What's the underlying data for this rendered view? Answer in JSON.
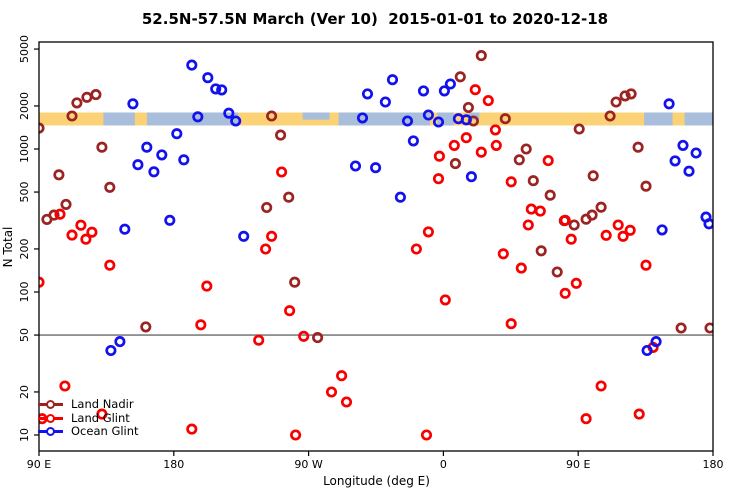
{
  "title": "52.5N-57.5N March (Ver 10)  2015-01-01 to 2020-12-18",
  "legend": {
    "position": "bottom-left"
  },
  "chart_data": {
    "type": "scatter",
    "title": "52.5N-57.5N March (Ver 10)  2015-01-01 to 2020-12-18",
    "xlabel": "Longitude (deg E)",
    "ylabel": "N Total",
    "x_axis": {
      "note": "x = degrees eastward from 90E; axis spans 450 deg (90E>180>90W>0>90E>180)",
      "span_deg": 450,
      "tick_positions_deg": [
        0,
        90,
        180,
        270,
        360,
        450
      ],
      "tick_labels": [
        "90 E",
        "180",
        "90 W",
        "0",
        "90 E",
        "180"
      ]
    },
    "y_axis": {
      "scale": "log10",
      "ticks": [
        10,
        20,
        50,
        100,
        200,
        500,
        1000,
        2000,
        5000
      ],
      "range": [
        8,
        5600
      ]
    },
    "reference_line_y": 50,
    "reference_line_color": "#808080",
    "map_band": {
      "comment": "land/ocean strip for 52.5N-57.5N plotted across the longitude axis",
      "y_value_range": [
        1460,
        1800
      ],
      "land_color": "#FBD376",
      "ocean_color": "#A8BEDA",
      "ocean_segments_deg": [
        [
          43,
          64
        ],
        [
          72,
          133
        ],
        [
          200,
          261
        ],
        [
          266,
          277
        ],
        [
          404,
          423
        ],
        [
          431,
          450
        ]
      ],
      "half_ocean_segments_deg": [
        [
          176,
          194
        ],
        [
          287,
          294
        ]
      ]
    },
    "series": [
      {
        "name": "Land Nadir",
        "color": "#9B2423",
        "points": [
          [
            0,
            1400
          ],
          [
            5.3,
            322
          ],
          [
            10,
            345
          ],
          [
            13.3,
            660
          ],
          [
            18,
            410
          ],
          [
            22,
            1700
          ],
          [
            25.3,
            2100
          ],
          [
            32,
            2300
          ],
          [
            38,
            2400
          ],
          [
            42,
            1030
          ],
          [
            47.3,
            540
          ],
          [
            71.3,
            57
          ],
          [
            152,
            390
          ],
          [
            155.3,
            1700
          ],
          [
            161.3,
            1250
          ],
          [
            166.7,
            460
          ],
          [
            170.7,
            117
          ],
          [
            186,
            48
          ],
          [
            278,
            790
          ],
          [
            281.3,
            3200
          ],
          [
            286.7,
            1950
          ],
          [
            290,
            1570
          ],
          [
            295.3,
            4500
          ],
          [
            311.3,
            1630
          ],
          [
            320.7,
            840
          ],
          [
            325.3,
            1000
          ],
          [
            330,
            600
          ],
          [
            335.3,
            194
          ],
          [
            341.3,
            475
          ],
          [
            346,
            138
          ],
          [
            350.7,
            315
          ],
          [
            357.3,
            294
          ],
          [
            360.7,
            1380
          ],
          [
            365.3,
            323
          ],
          [
            369.3,
            345
          ],
          [
            370,
            650
          ],
          [
            375.3,
            392
          ],
          [
            381.3,
            1700
          ],
          [
            385.3,
            2130
          ],
          [
            391.3,
            2350
          ],
          [
            395.3,
            2430
          ],
          [
            400,
            1030
          ],
          [
            405.3,
            549
          ],
          [
            428.7,
            56
          ],
          [
            448,
            56
          ]
        ]
      },
      {
        "name": "Land Glint",
        "color": "#F80000",
        "points": [
          [
            0,
            117
          ],
          [
            2,
            13
          ],
          [
            14,
            350
          ],
          [
            17.3,
            22
          ],
          [
            22,
            250
          ],
          [
            28,
            293
          ],
          [
            31.3,
            234
          ],
          [
            35.3,
            262
          ],
          [
            42,
            14
          ],
          [
            47.3,
            154
          ],
          [
            102,
            11
          ],
          [
            108,
            59
          ],
          [
            112,
            110
          ],
          [
            146.7,
            46
          ],
          [
            151.3,
            200
          ],
          [
            155.3,
            245
          ],
          [
            162,
            690
          ],
          [
            167.3,
            74
          ],
          [
            171.3,
            10
          ],
          [
            176.7,
            49
          ],
          [
            195.3,
            20
          ],
          [
            202,
            26
          ],
          [
            205.3,
            17
          ],
          [
            252,
            200
          ],
          [
            258.7,
            10
          ],
          [
            260,
            263
          ],
          [
            266.7,
            620
          ],
          [
            267.3,
            890
          ],
          [
            271.3,
            88
          ],
          [
            277.3,
            1060
          ],
          [
            285.3,
            1200
          ],
          [
            291.3,
            2600
          ],
          [
            295.3,
            950
          ],
          [
            300,
            2180
          ],
          [
            304.7,
            1360
          ],
          [
            305.3,
            1060
          ],
          [
            310,
            185
          ],
          [
            315.3,
            590
          ],
          [
            315.3,
            60
          ],
          [
            322,
            147
          ],
          [
            326.7,
            294
          ],
          [
            328.7,
            380
          ],
          [
            334.7,
            368
          ],
          [
            340,
            830
          ],
          [
            351.3,
            317
          ],
          [
            351.3,
            98
          ],
          [
            355.3,
            234
          ],
          [
            358.7,
            115
          ],
          [
            365.3,
            13
          ],
          [
            375.3,
            22
          ],
          [
            378.7,
            249
          ],
          [
            386.7,
            294
          ],
          [
            390,
            245
          ],
          [
            394.7,
            270
          ],
          [
            400.7,
            14
          ],
          [
            405.3,
            154
          ],
          [
            410,
            41
          ]
        ]
      },
      {
        "name": "Ocean Glint",
        "color": "#1212EE",
        "points": [
          [
            48,
            39
          ],
          [
            54,
            45
          ],
          [
            57.3,
            275
          ],
          [
            62.7,
            2070
          ],
          [
            66,
            776
          ],
          [
            72,
            1030
          ],
          [
            76.7,
            693
          ],
          [
            82,
            910
          ],
          [
            87.3,
            317
          ],
          [
            92,
            1280
          ],
          [
            96.7,
            840
          ],
          [
            102,
            3860
          ],
          [
            106,
            1680
          ],
          [
            112.7,
            3150
          ],
          [
            118,
            2630
          ],
          [
            122,
            2590
          ],
          [
            126.7,
            1780
          ],
          [
            131.3,
            1570
          ],
          [
            136.7,
            245
          ],
          [
            211.3,
            760
          ],
          [
            216,
            1650
          ],
          [
            219.3,
            2430
          ],
          [
            224.7,
            740
          ],
          [
            231.3,
            2130
          ],
          [
            236,
            3050
          ],
          [
            241.3,
            460
          ],
          [
            246,
            1570
          ],
          [
            250,
            1140
          ],
          [
            256.7,
            2550
          ],
          [
            260,
            1730
          ],
          [
            266.7,
            1545
          ],
          [
            270.7,
            2550
          ],
          [
            274.7,
            2850
          ],
          [
            280,
            1630
          ],
          [
            285.3,
            1600
          ],
          [
            288.7,
            640
          ],
          [
            406,
            39
          ],
          [
            412,
            45
          ],
          [
            416,
            272
          ],
          [
            420.7,
            2070
          ],
          [
            424.7,
            826
          ],
          [
            430,
            1060
          ],
          [
            434,
            700
          ],
          [
            438.7,
            937
          ],
          [
            445.3,
            334
          ],
          [
            447.3,
            300
          ]
        ]
      }
    ]
  }
}
